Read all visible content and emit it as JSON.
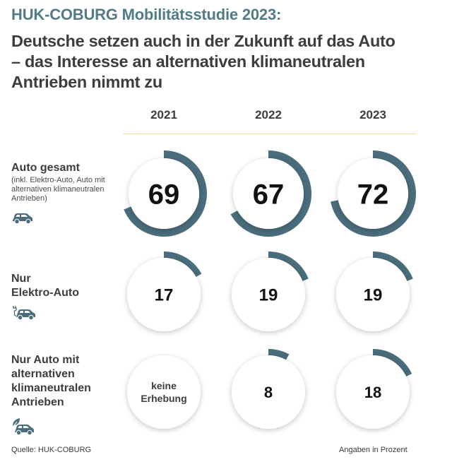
{
  "header": {
    "supertitle": "HUK-COBURG Mobilitätsstudie 2023:",
    "headline_lines": [
      "Deutsche setzen auch in der Zukunft auf das Auto",
      "– das Interesse an alternativen klimaneutralen",
      "Antrieben nimmt zu"
    ]
  },
  "colors": {
    "accent": "#4a6d7c",
    "supertitle": "#527b89",
    "divider": "#ece08c",
    "text": "#3d3d3d"
  },
  "rows": [
    {
      "label_lines": [
        "Auto gesamt"
      ],
      "sub_lines": [
        "(inkl. Elektro-Auto, Auto mit",
        "alternativen klimaneutralen",
        "Antrieben)"
      ],
      "icon": "car-icon"
    },
    {
      "label_lines": [
        "Nur",
        "Elektro-Auto"
      ],
      "sub_lines": [],
      "icon": "electric-car-icon"
    },
    {
      "label_lines": [
        "Nur Auto mit",
        "alternativen",
        "klimaneutralen",
        "Antrieben"
      ],
      "sub_lines": [],
      "icon": "eco-car-icon"
    }
  ],
  "chart_data": {
    "type": "radial-progress-grid",
    "title": "HUK-COBURG Mobilitätsstudie 2023",
    "unit": "Prozent",
    "categories": [
      "2021",
      "2022",
      "2023"
    ],
    "series": [
      {
        "name": "Auto gesamt",
        "values": [
          69,
          67,
          72
        ],
        "labels": [
          "69",
          "67",
          "72"
        ]
      },
      {
        "name": "Nur Elektro-Auto",
        "values": [
          17,
          19,
          19
        ],
        "labels": [
          "17",
          "19",
          "19"
        ]
      },
      {
        "name": "Nur Auto mit alternativen klimaneutralen Antrieben",
        "values": [
          null,
          8,
          18
        ],
        "labels": [
          "keine Erhebung",
          "8",
          "18"
        ]
      }
    ],
    "max": 100
  },
  "footer": {
    "source": "Quelle: HUK-COBURG",
    "unit_note": "Angaben in Prozent"
  }
}
